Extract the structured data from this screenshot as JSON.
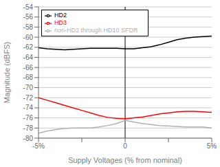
{
  "chart_data": {
    "type": "line",
    "xlabel": "Supply Voltages (% from nominal)",
    "ylabel": "Magnitude (dBFS)",
    "x": [
      -5,
      -4.5,
      -4,
      -3.5,
      -3,
      -2.5,
      -2,
      -1.5,
      -1,
      -0.5,
      0,
      0.5,
      1,
      1.5,
      2,
      2.5,
      3,
      3.5,
      4,
      4.5,
      5
    ],
    "series": [
      {
        "name": "HD2",
        "color": "#000000",
        "values": [
          -62.1,
          -62.3,
          -62.4,
          -62.5,
          -62.4,
          -62.3,
          -62.2,
          -62.2,
          -62.2,
          -62.2,
          -62.3,
          -62.3,
          -62.1,
          -61.9,
          -61.5,
          -61.0,
          -60.5,
          -60.2,
          -60.0,
          -59.9,
          -59.8
        ]
      },
      {
        "name": "HD3",
        "color": "#ff0000",
        "values": [
          -72.0,
          -72.5,
          -73.0,
          -73.5,
          -74.0,
          -74.5,
          -75.0,
          -75.5,
          -75.9,
          -76.1,
          -76.2,
          -76.0,
          -75.8,
          -75.5,
          -75.2,
          -75.0,
          -74.8,
          -74.7,
          -74.7,
          -74.8,
          -74.9
        ]
      },
      {
        "name": "non-HD2 through HD10 SFDR",
        "color": "#b0b0b0",
        "values": [
          -79.0,
          -78.6,
          -78.3,
          -78.1,
          -78.0,
          -78.0,
          -78.0,
          -77.8,
          -77.5,
          -77.1,
          -76.5,
          -76.8,
          -77.1,
          -77.3,
          -77.5,
          -77.6,
          -77.7,
          -77.8,
          -77.8,
          -77.8,
          -78.0
        ]
      }
    ],
    "xlim": [
      -5,
      5
    ],
    "xticks": [
      {
        "value": -5,
        "label": "-5%"
      },
      {
        "value": -2.5,
        "label": null
      },
      0,
      {
        "value": 2.5,
        "label": null
      },
      {
        "value": 5,
        "label": "5%"
      }
    ],
    "ylim": [
      -80,
      -54
    ],
    "yticks": [
      -80,
      -78,
      -76,
      -74,
      -72,
      -70,
      -68,
      -66,
      -64,
      -62,
      -60,
      -58,
      -56,
      -54
    ],
    "grid": true,
    "legend": "upper left",
    "vline_x": 0
  }
}
